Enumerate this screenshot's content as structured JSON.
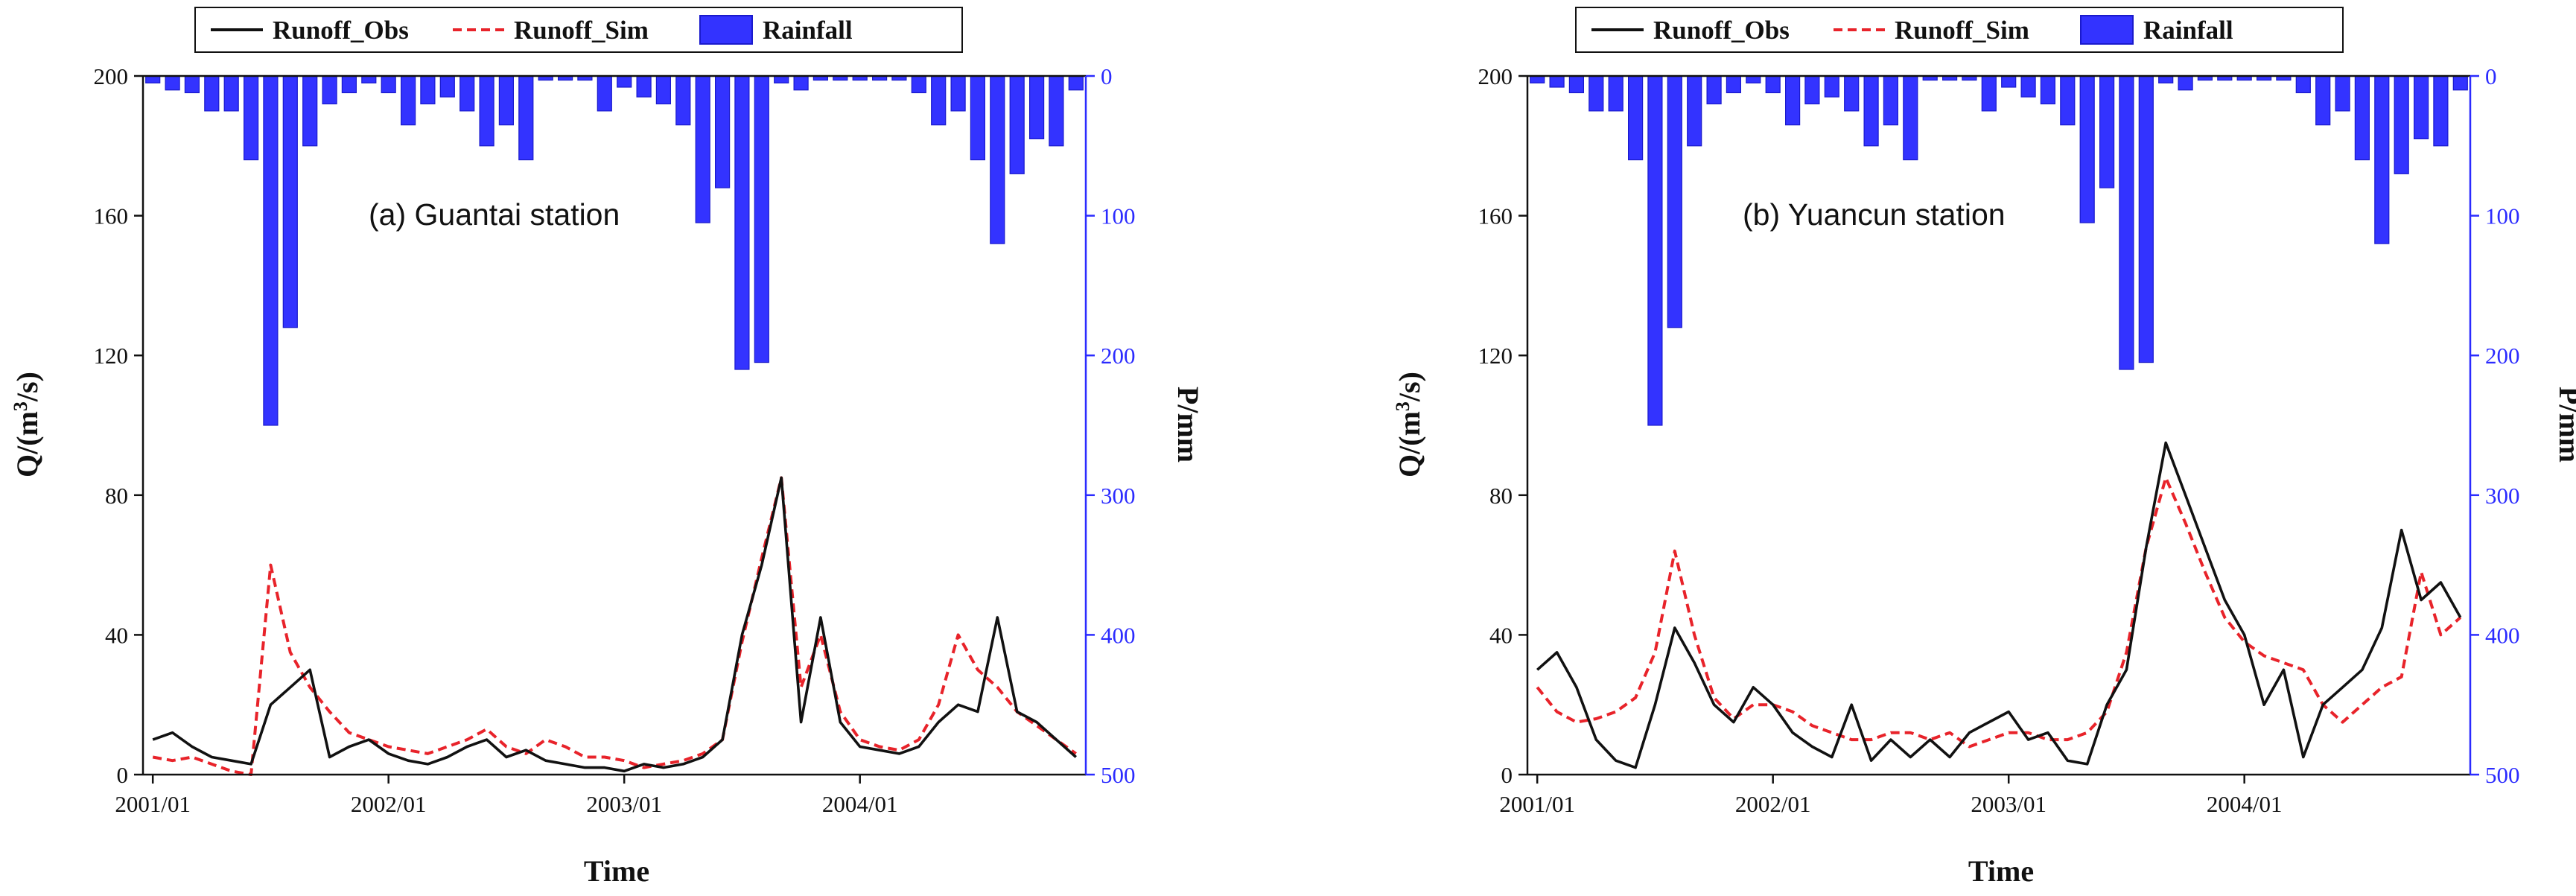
{
  "colors": {
    "obs": "#111111",
    "sim": "#e8232a",
    "rain": "#3333ff",
    "rain_edge": "#1a1acc",
    "right_axis": "#2b2bff",
    "axis": "#111111"
  },
  "chart_data": [
    {
      "type": "line+bar",
      "panel": "a",
      "annotation": "(a) Guantai station",
      "legend": [
        {
          "label": "Runoff_Obs",
          "style": "solid",
          "color": "#111111"
        },
        {
          "label": "Runoff_Sim",
          "style": "dashed",
          "color": "#e8232a"
        },
        {
          "label": "Rainfall",
          "style": "bar",
          "color": "#3333ff"
        }
      ],
      "xlabel": "Time",
      "ylabel_left": "Q/(m³/s)",
      "ylabel_right": "P/mm",
      "x_ticks": [
        {
          "label": "2001/01",
          "index": 0
        },
        {
          "label": "2002/01",
          "index": 12
        },
        {
          "label": "2003/01",
          "index": 24
        },
        {
          "label": "2004/01",
          "index": 36
        }
      ],
      "ylim_left": [
        0,
        200
      ],
      "yticks_left": [
        "0",
        "40",
        "80",
        "120",
        "160",
        "200"
      ],
      "ylim_right": [
        0,
        500
      ],
      "yticks_right": [
        "0",
        "100",
        "200",
        "300",
        "400",
        "500"
      ],
      "runoff_obs": [
        10,
        12,
        8,
        5,
        4,
        3,
        20,
        25,
        30,
        5,
        8,
        10,
        6,
        4,
        3,
        5,
        8,
        10,
        5,
        7,
        4,
        3,
        2,
        2,
        1,
        3,
        2,
        3,
        5,
        10,
        40,
        60,
        85,
        15,
        45,
        15,
        8,
        7,
        6,
        8,
        15,
        20,
        18,
        45,
        18,
        15,
        10,
        5
      ],
      "runoff_sim": [
        5,
        4,
        5,
        3,
        1,
        0,
        60,
        35,
        25,
        18,
        12,
        10,
        8,
        7,
        6,
        8,
        10,
        13,
        8,
        6,
        10,
        8,
        5,
        5,
        4,
        2,
        3,
        4,
        6,
        10,
        38,
        62,
        85,
        25,
        40,
        18,
        10,
        8,
        7,
        10,
        20,
        40,
        30,
        25,
        18,
        14,
        10,
        6
      ],
      "rainfall": [
        5,
        10,
        12,
        25,
        25,
        60,
        250,
        180,
        50,
        20,
        12,
        5,
        12,
        35,
        20,
        15,
        25,
        50,
        35,
        60,
        3,
        3,
        3,
        25,
        8,
        15,
        20,
        35,
        105,
        80,
        210,
        205,
        5,
        10,
        3,
        3,
        3,
        3,
        3,
        12,
        35,
        25,
        60,
        120,
        70,
        45,
        50,
        10
      ]
    },
    {
      "type": "line+bar",
      "panel": "b",
      "annotation": "(b) Yuancun station",
      "legend": [
        {
          "label": "Runoff_Obs",
          "style": "solid",
          "color": "#111111"
        },
        {
          "label": "Runoff_Sim",
          "style": "dashed",
          "color": "#e8232a"
        },
        {
          "label": "Rainfall",
          "style": "bar",
          "color": "#3333ff"
        }
      ],
      "xlabel": "Time",
      "ylabel_left": "Q/(m³/s)",
      "ylabel_right": "P/mm",
      "x_ticks": [
        {
          "label": "2001/01",
          "index": 0
        },
        {
          "label": "2002/01",
          "index": 12
        },
        {
          "label": "2003/01",
          "index": 24
        },
        {
          "label": "2004/01",
          "index": 36
        }
      ],
      "ylim_left": [
        0,
        200
      ],
      "yticks_left": [
        "0",
        "40",
        "80",
        "120",
        "160",
        "200"
      ],
      "ylim_right": [
        0,
        500
      ],
      "yticks_right": [
        "0",
        "100",
        "200",
        "300",
        "400",
        "500"
      ],
      "runoff_obs": [
        30,
        35,
        25,
        10,
        4,
        2,
        20,
        42,
        32,
        20,
        15,
        25,
        20,
        12,
        8,
        5,
        20,
        4,
        10,
        5,
        10,
        5,
        12,
        15,
        18,
        10,
        12,
        4,
        3,
        20,
        30,
        65,
        95,
        80,
        65,
        50,
        40,
        20,
        30,
        5,
        20,
        25,
        30,
        42,
        70,
        50,
        55,
        45
      ],
      "runoff_sim": [
        25,
        18,
        15,
        16,
        18,
        22,
        35,
        64,
        40,
        22,
        16,
        20,
        20,
        18,
        14,
        12,
        10,
        10,
        12,
        12,
        10,
        12,
        8,
        10,
        12,
        12,
        10,
        10,
        12,
        18,
        35,
        65,
        85,
        72,
        58,
        45,
        38,
        34,
        32,
        30,
        20,
        15,
        20,
        25,
        28,
        58,
        40,
        45
      ],
      "rainfall": [
        5,
        8,
        12,
        25,
        25,
        60,
        250,
        180,
        50,
        20,
        12,
        5,
        12,
        35,
        20,
        15,
        25,
        50,
        35,
        60,
        3,
        3,
        3,
        25,
        8,
        15,
        20,
        35,
        105,
        80,
        210,
        205,
        5,
        10,
        3,
        3,
        3,
        3,
        3,
        12,
        35,
        25,
        60,
        120,
        70,
        45,
        50,
        10
      ]
    }
  ]
}
